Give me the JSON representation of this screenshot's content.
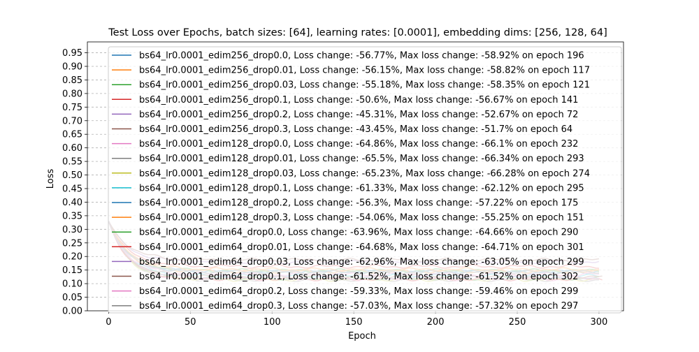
{
  "chart_data": {
    "type": "line",
    "title": "Test Loss over Epochs, batch sizes: [64], learning rates: [0.0001], embedding dims: [256, 128, 64]",
    "xlabel": "Epoch",
    "ylabel": "Loss",
    "xlim": [
      -13,
      315
    ],
    "ylim": [
      0,
      0.99
    ],
    "xticks": [
      "0",
      "50",
      "100",
      "150",
      "200",
      "250",
      "300"
    ],
    "yticks": [
      "0.00",
      "0.05",
      "0.10",
      "0.15",
      "0.20",
      "0.25",
      "0.30",
      "0.35",
      "0.40",
      "0.45",
      "0.50",
      "0.55",
      "0.60",
      "0.65",
      "0.70",
      "0.75",
      "0.80",
      "0.85",
      "0.90",
      "0.95"
    ],
    "grid": "horizontal dashed",
    "legend_position": "top-center",
    "series": [
      {
        "name": "bs64_lr0.0001_edim256_drop0.0, Loss change: -56.77%, Max loss change: -58.92% on epoch 196",
        "color": "#1f77b4",
        "start": 0.33,
        "end": 0.143,
        "epochs": 300
      },
      {
        "name": "bs64_lr0.0001_edim256_drop0.01, Loss change: -56.15%, Max loss change: -58.82% on epoch 117",
        "color": "#ff7f0e",
        "start": 0.33,
        "end": 0.145,
        "epochs": 300
      },
      {
        "name": "bs64_lr0.0001_edim256_drop0.03, Loss change: -55.18%, Max loss change: -58.35% on epoch 121",
        "color": "#2ca02c",
        "start": 0.33,
        "end": 0.148,
        "epochs": 300
      },
      {
        "name": "bs64_lr0.0001_edim256_drop0.1, Loss change: -50.6%, Max loss change: -56.67% on epoch 141",
        "color": "#d62728",
        "start": 0.33,
        "end": 0.163,
        "epochs": 300
      },
      {
        "name": "bs64_lr0.0001_edim256_drop0.2, Loss change: -45.31%, Max loss change: -52.67% on epoch 72",
        "color": "#9467bd",
        "start": 0.33,
        "end": 0.18,
        "epochs": 300
      },
      {
        "name": "bs64_lr0.0001_edim256_drop0.3, Loss change: -43.45%, Max loss change: -51.7% on epoch 64",
        "color": "#8c564b",
        "start": 0.33,
        "end": 0.187,
        "epochs": 300
      },
      {
        "name": "bs64_lr0.0001_edim128_drop0.0, Loss change: -64.86%, Max loss change: -66.1% on epoch 232",
        "color": "#e377c2",
        "start": 0.33,
        "end": 0.116,
        "epochs": 300
      },
      {
        "name": "bs64_lr0.0001_edim128_drop0.01, Loss change: -65.5%, Max loss change: -66.34% on epoch 293",
        "color": "#7f7f7f",
        "start": 0.33,
        "end": 0.114,
        "epochs": 300
      },
      {
        "name": "bs64_lr0.0001_edim128_drop0.03, Loss change: -65.23%, Max loss change: -66.28% on epoch 274",
        "color": "#bcbd22",
        "start": 0.33,
        "end": 0.115,
        "epochs": 300
      },
      {
        "name": "bs64_lr0.0001_edim128_drop0.1, Loss change: -61.33%, Max loss change: -62.12% on epoch 295",
        "color": "#17becf",
        "start": 0.33,
        "end": 0.128,
        "epochs": 300
      },
      {
        "name": "bs64_lr0.0001_edim128_drop0.2, Loss change: -56.3%, Max loss change: -57.22% on epoch 175",
        "color": "#1f77b4",
        "start": 0.33,
        "end": 0.144,
        "epochs": 300
      },
      {
        "name": "bs64_lr0.0001_edim128_drop0.3, Loss change: -54.06%, Max loss change: -55.25% on epoch 151",
        "color": "#ff7f0e",
        "start": 0.33,
        "end": 0.152,
        "epochs": 300
      },
      {
        "name": "bs64_lr0.0001_edim64_drop0.0, Loss change: -63.96%, Max loss change: -64.66% on epoch 290",
        "color": "#2ca02c",
        "start": 0.33,
        "end": 0.119,
        "epochs": 300
      },
      {
        "name": "bs64_lr0.0001_edim64_drop0.01, Loss change: -64.68%, Max loss change: -64.71% on epoch 301",
        "color": "#d62728",
        "start": 0.33,
        "end": 0.117,
        "epochs": 302
      },
      {
        "name": "bs64_lr0.0001_edim64_drop0.03, Loss change: -62.96%, Max loss change: -63.05% on epoch 299",
        "color": "#9467bd",
        "start": 0.33,
        "end": 0.122,
        "epochs": 300
      },
      {
        "name": "bs64_lr0.0001_edim64_drop0.1, Loss change: -61.52%, Max loss change: -61.52% on epoch 302",
        "color": "#8c564b",
        "start": 0.33,
        "end": 0.127,
        "epochs": 302
      },
      {
        "name": "bs64_lr0.0001_edim64_drop0.2, Loss change: -59.33%, Max loss change: -59.46% on epoch 299",
        "color": "#e377c2",
        "start": 0.33,
        "end": 0.134,
        "epochs": 300
      },
      {
        "name": "bs64_lr0.0001_edim64_drop0.3, Loss change: -57.03%, Max loss change: -57.32% on epoch 297",
        "color": "#7f7f7f",
        "start": 0.33,
        "end": 0.142,
        "epochs": 300
      }
    ]
  }
}
